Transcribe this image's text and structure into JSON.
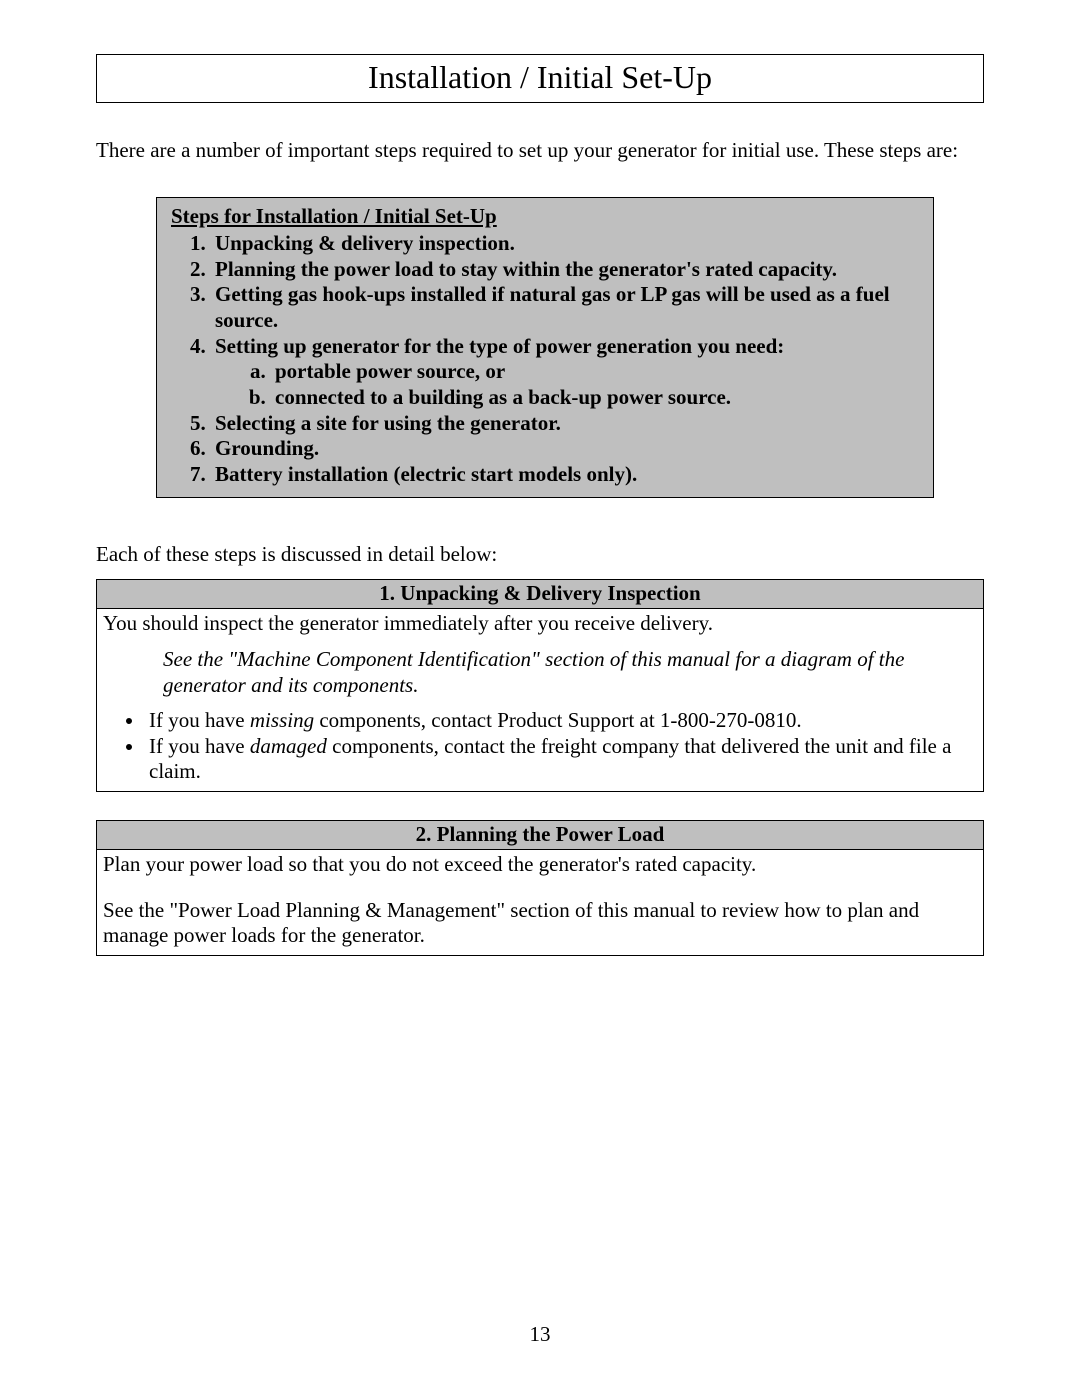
{
  "title": "Installation / Initial Set-Up",
  "intro": "There are a number of important steps required to set up your generator for initial use. These steps are:",
  "steps": {
    "heading": "Steps for Installation / Initial Set-Up",
    "items": [
      "Unpacking & delivery inspection.",
      "Planning the power load to stay within the generator's rated capacity.",
      "Getting gas hook-ups installed if natural gas or LP gas will be used as a fuel source.",
      "Setting up generator for the type of power generation you need:",
      "Selecting a site for using the generator.",
      "Grounding.",
      "Battery installation (electric start models only)."
    ],
    "sub4": [
      "portable power source, or",
      "connected to a building as a back-up power source."
    ]
  },
  "mid": "Each of these steps is discussed in detail below:",
  "section1": {
    "header": "1.  Unpacking & Delivery Inspection",
    "line1": "You should inspect the generator immediately after you receive delivery.",
    "note": "See the \"Machine Component Identification\" section of this manual for a diagram of the generator and its components.",
    "bullet1_pre": "If you have ",
    "bullet1_em": "missing",
    "bullet1_post": " components, contact Product Support at 1-800-270-0810.",
    "bullet2_pre": "If you have ",
    "bullet2_em": "damaged",
    "bullet2_post": " components, contact the freight company that delivered the unit and file a claim."
  },
  "section2": {
    "header": "2. Planning the Power Load",
    "line1": "Plan your power load so that you do not exceed the generator's rated capacity.",
    "line2": "See the \"Power Load Planning & Management\" section of this manual to review how to plan and manage power loads for the generator."
  },
  "pageNumber": "13"
}
